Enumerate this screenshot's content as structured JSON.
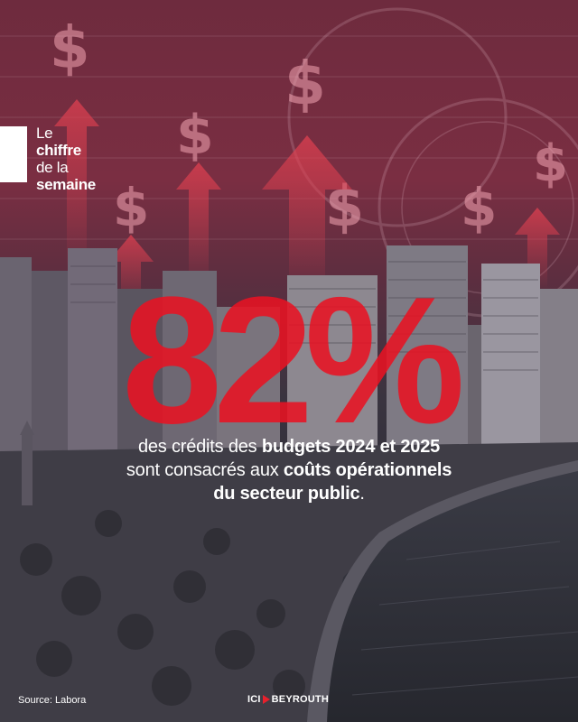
{
  "tag": {
    "line1": "Le",
    "line2": "chiffre",
    "line3": "de la",
    "line4": "semaine"
  },
  "headline": {
    "value": "82%"
  },
  "caption": {
    "p1": "des crédits des ",
    "p1b": "budgets 2024 et 2025",
    "p2": "sont consacrés aux ",
    "p2b": "coûts opérationnels",
    "p3b": "du secteur public",
    "p3": "."
  },
  "footer": {
    "source": "Source: Labora",
    "logo_left": "ICI",
    "logo_right": "BEYROUTH"
  },
  "colors": {
    "accent": "#e81222",
    "text": "#ffffff",
    "tint": "#7a2e42"
  },
  "icons": [
    "dollar-sign-icon",
    "up-arrow-icon",
    "play-triangle-icon"
  ]
}
